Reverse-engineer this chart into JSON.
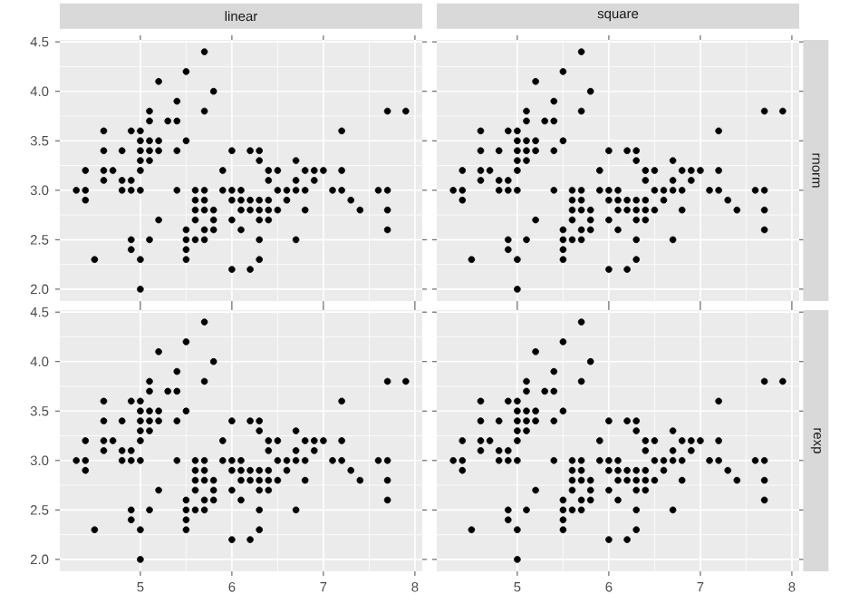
{
  "chart_data": [
    {
      "type": "scatter",
      "title": "linear",
      "marker": "circle",
      "color": "#000000",
      "grid": true,
      "tick_labels": "y",
      "x": [
        4.3,
        4.4,
        4.4,
        4.4,
        4.5,
        4.6,
        4.6,
        4.6,
        4.6,
        4.7,
        4.8,
        4.8,
        4.8,
        4.9,
        4.9,
        4.9,
        4.9,
        4.9,
        5.0,
        5.0,
        5.0,
        5.0,
        5.0,
        5.0,
        5.0,
        5.0,
        5.1,
        5.1,
        5.1,
        5.1,
        5.1,
        5.1,
        5.2,
        5.2,
        5.2,
        5.2,
        5.3,
        5.4,
        5.4,
        5.4,
        5.4,
        5.5,
        5.5,
        5.5,
        5.5,
        5.5,
        5.5,
        5.6,
        5.6,
        5.6,
        5.6,
        5.6,
        5.7,
        5.7,
        5.7,
        5.7,
        5.7,
        5.7,
        5.7,
        5.8,
        5.8,
        5.8,
        5.8,
        5.9,
        5.9,
        6.0,
        6.0,
        6.0,
        6.0,
        6.0,
        6.1,
        6.1,
        6.1,
        6.1,
        6.2,
        6.2,
        6.2,
        6.2,
        6.3,
        6.3,
        6.3,
        6.3,
        6.3,
        6.3,
        6.3,
        6.4,
        6.4,
        6.4,
        6.4,
        6.4,
        6.5,
        6.5,
        6.5,
        6.6,
        6.6,
        6.7,
        6.7,
        6.7,
        6.7,
        6.8,
        6.8,
        6.8,
        6.9,
        6.9,
        7.0,
        7.1,
        7.2,
        7.2,
        7.2,
        7.3,
        7.4,
        7.6,
        7.7,
        7.7,
        7.7,
        7.7,
        7.9
      ],
      "values": [
        3.0,
        2.9,
        3.0,
        3.2,
        2.3,
        3.1,
        3.4,
        3.6,
        3.2,
        3.2,
        3.4,
        3.0,
        3.1,
        3.0,
        3.1,
        3.6,
        2.4,
        2.5,
        3.6,
        3.4,
        3.0,
        3.2,
        3.5,
        3.3,
        2.0,
        2.3,
        3.5,
        3.8,
        3.7,
        3.3,
        3.4,
        2.5,
        3.5,
        3.4,
        4.1,
        2.7,
        3.7,
        3.9,
        3.7,
        3.4,
        3.0,
        4.2,
        3.5,
        2.3,
        2.4,
        2.5,
        2.6,
        2.9,
        3.0,
        2.5,
        2.7,
        2.8,
        4.4,
        3.8,
        2.8,
        2.6,
        3.0,
        2.9,
        2.5,
        4.0,
        2.7,
        2.6,
        2.8,
        3.0,
        3.2,
        2.2,
        2.9,
        2.7,
        3.4,
        3.0,
        2.9,
        2.8,
        3.0,
        2.6,
        2.2,
        2.9,
        2.8,
        3.4,
        3.3,
        2.5,
        2.3,
        2.9,
        2.7,
        2.8,
        3.4,
        3.2,
        2.9,
        2.7,
        2.8,
        3.1,
        2.8,
        3.0,
        3.2,
        2.9,
        3.0,
        3.1,
        3.0,
        2.5,
        3.3,
        2.8,
        3.0,
        3.2,
        3.1,
        3.2,
        3.2,
        3.0,
        3.6,
        3.2,
        3.0,
        2.9,
        2.8,
        3.0,
        3.8,
        2.6,
        2.8,
        3.0,
        3.8
      ],
      "xlim": [
        4.12,
        8.08
      ],
      "xticks": [
        5,
        6,
        7,
        8
      ],
      "ylim": [
        1.88,
        4.52
      ],
      "yticks": [
        {
          "value": 2,
          "label": "2.0"
        },
        {
          "value": 2.5,
          "label": "2.5"
        },
        {
          "value": 3,
          "label": "3.0"
        },
        {
          "value": 3.5,
          "label": "3.5"
        },
        {
          "value": 4,
          "label": "4.0"
        },
        {
          "value": 4.5,
          "label": "4.5"
        }
      ]
    },
    {
      "type": "scatter",
      "title": "square",
      "annotations": [
        "rnorm"
      ],
      "marker": "circle",
      "color": "#000000",
      "grid": true,
      "tick_labels": false,
      "yticks": [
        2,
        2.5,
        3,
        3.5,
        4,
        4.5
      ],
      "x": [
        4.3,
        4.4,
        4.4,
        4.4,
        4.5,
        4.6,
        4.6,
        4.6,
        4.6,
        4.7,
        4.8,
        4.8,
        4.8,
        4.9,
        4.9,
        4.9,
        4.9,
        4.9,
        5.0,
        5.0,
        5.0,
        5.0,
        5.0,
        5.0,
        5.0,
        5.0,
        5.1,
        5.1,
        5.1,
        5.1,
        5.1,
        5.1,
        5.2,
        5.2,
        5.2,
        5.2,
        5.3,
        5.4,
        5.4,
        5.4,
        5.4,
        5.5,
        5.5,
        5.5,
        5.5,
        5.5,
        5.5,
        5.6,
        5.6,
        5.6,
        5.6,
        5.6,
        5.7,
        5.7,
        5.7,
        5.7,
        5.7,
        5.7,
        5.7,
        5.8,
        5.8,
        5.8,
        5.8,
        5.9,
        5.9,
        6.0,
        6.0,
        6.0,
        6.0,
        6.0,
        6.1,
        6.1,
        6.1,
        6.1,
        6.2,
        6.2,
        6.2,
        6.2,
        6.3,
        6.3,
        6.3,
        6.3,
        6.3,
        6.3,
        6.3,
        6.4,
        6.4,
        6.4,
        6.4,
        6.4,
        6.5,
        6.5,
        6.5,
        6.6,
        6.6,
        6.7,
        6.7,
        6.7,
        6.7,
        6.8,
        6.8,
        6.8,
        6.9,
        6.9,
        7.0,
        7.1,
        7.2,
        7.2,
        7.2,
        7.3,
        7.4,
        7.6,
        7.7,
        7.7,
        7.7,
        7.7,
        7.9
      ],
      "values": [
        3.0,
        2.9,
        3.0,
        3.2,
        2.3,
        3.1,
        3.4,
        3.6,
        3.2,
        3.2,
        3.4,
        3.0,
        3.1,
        3.0,
        3.1,
        3.6,
        2.4,
        2.5,
        3.6,
        3.4,
        3.0,
        3.2,
        3.5,
        3.3,
        2.0,
        2.3,
        3.5,
        3.8,
        3.7,
        3.3,
        3.4,
        2.5,
        3.5,
        3.4,
        4.1,
        2.7,
        3.7,
        3.9,
        3.7,
        3.4,
        3.0,
        4.2,
        3.5,
        2.3,
        2.4,
        2.5,
        2.6,
        2.9,
        3.0,
        2.5,
        2.7,
        2.8,
        4.4,
        3.8,
        2.8,
        2.6,
        3.0,
        2.9,
        2.5,
        4.0,
        2.7,
        2.6,
        2.8,
        3.0,
        3.2,
        2.2,
        2.9,
        2.7,
        3.4,
        3.0,
        2.9,
        2.8,
        3.0,
        2.6,
        2.2,
        2.9,
        2.8,
        3.4,
        3.3,
        2.5,
        2.3,
        2.9,
        2.7,
        2.8,
        3.4,
        3.2,
        2.9,
        2.7,
        2.8,
        3.1,
        2.8,
        3.0,
        3.2,
        2.9,
        3.0,
        3.1,
        3.0,
        2.5,
        3.3,
        2.8,
        3.0,
        3.2,
        3.1,
        3.2,
        3.2,
        3.0,
        3.6,
        3.2,
        3.0,
        2.9,
        2.8,
        3.0,
        3.8,
        2.6,
        2.8,
        3.0,
        3.8
      ],
      "xlim": [
        4.12,
        8.08
      ],
      "xticks": [
        5,
        6,
        7,
        8
      ],
      "ylim": [
        1.88,
        4.52
      ]
    },
    {
      "type": "scatter",
      "marker": "circle",
      "color": "#000000",
      "grid": true,
      "x": [
        4.3,
        4.4,
        4.4,
        4.4,
        4.5,
        4.6,
        4.6,
        4.6,
        4.6,
        4.7,
        4.8,
        4.8,
        4.8,
        4.9,
        4.9,
        4.9,
        4.9,
        4.9,
        5.0,
        5.0,
        5.0,
        5.0,
        5.0,
        5.0,
        5.0,
        5.0,
        5.1,
        5.1,
        5.1,
        5.1,
        5.1,
        5.1,
        5.2,
        5.2,
        5.2,
        5.2,
        5.3,
        5.4,
        5.4,
        5.4,
        5.4,
        5.5,
        5.5,
        5.5,
        5.5,
        5.5,
        5.5,
        5.6,
        5.6,
        5.6,
        5.6,
        5.6,
        5.7,
        5.7,
        5.7,
        5.7,
        5.7,
        5.7,
        5.7,
        5.8,
        5.8,
        5.8,
        5.8,
        5.9,
        5.9,
        6.0,
        6.0,
        6.0,
        6.0,
        6.0,
        6.1,
        6.1,
        6.1,
        6.1,
        6.2,
        6.2,
        6.2,
        6.2,
        6.3,
        6.3,
        6.3,
        6.3,
        6.3,
        6.3,
        6.3,
        6.4,
        6.4,
        6.4,
        6.4,
        6.4,
        6.5,
        6.5,
        6.5,
        6.6,
        6.6,
        6.7,
        6.7,
        6.7,
        6.7,
        6.8,
        6.8,
        6.8,
        6.9,
        6.9,
        7.0,
        7.1,
        7.2,
        7.2,
        7.2,
        7.3,
        7.4,
        7.6,
        7.7,
        7.7,
        7.7,
        7.7,
        7.9
      ],
      "values": [
        3.0,
        2.9,
        3.0,
        3.2,
        2.3,
        3.1,
        3.4,
        3.6,
        3.2,
        3.2,
        3.4,
        3.0,
        3.1,
        3.0,
        3.1,
        3.6,
        2.4,
        2.5,
        3.6,
        3.4,
        3.0,
        3.2,
        3.5,
        3.3,
        2.0,
        2.3,
        3.5,
        3.8,
        3.7,
        3.3,
        3.4,
        2.5,
        3.5,
        3.4,
        4.1,
        2.7,
        3.7,
        3.9,
        3.7,
        3.4,
        3.0,
        4.2,
        3.5,
        2.3,
        2.4,
        2.5,
        2.6,
        2.9,
        3.0,
        2.5,
        2.7,
        2.8,
        4.4,
        3.8,
        2.8,
        2.6,
        3.0,
        2.9,
        2.5,
        4.0,
        2.7,
        2.6,
        2.8,
        3.0,
        3.2,
        2.2,
        2.9,
        2.7,
        3.4,
        3.0,
        2.9,
        2.8,
        3.0,
        2.6,
        2.2,
        2.9,
        2.8,
        3.4,
        3.3,
        2.5,
        2.3,
        2.9,
        2.7,
        2.8,
        3.4,
        3.2,
        2.9,
        2.7,
        2.8,
        3.1,
        2.8,
        3.0,
        3.2,
        2.9,
        3.0,
        3.1,
        3.0,
        2.5,
        3.3,
        2.8,
        3.0,
        3.2,
        3.1,
        3.2,
        3.2,
        3.0,
        3.6,
        3.2,
        3.0,
        2.9,
        2.8,
        3.0,
        3.8,
        2.6,
        2.8,
        3.0,
        3.8
      ],
      "xlim": [
        4.12,
        8.08
      ],
      "xticks": [
        5,
        6,
        7,
        8
      ],
      "ylim": [
        1.88,
        4.52
      ],
      "yticks": [
        {
          "value": 2,
          "label": "2.0"
        },
        {
          "value": 2.5,
          "label": "2.5"
        },
        {
          "value": 3,
          "label": "3.0"
        },
        {
          "value": 3.5,
          "label": "3.5"
        },
        {
          "value": 4,
          "label": "4.0"
        },
        {
          "value": 4.5,
          "label": "4.5"
        }
      ]
    },
    {
      "type": "scatter",
      "annotations": [
        "rexp"
      ],
      "marker": "circle",
      "color": "#000000",
      "grid": true,
      "tick_labels": "x",
      "yticks": [
        2,
        2.5,
        3,
        3.5,
        4,
        4.5
      ],
      "x": [
        4.3,
        4.4,
        4.4,
        4.4,
        4.5,
        4.6,
        4.6,
        4.6,
        4.6,
        4.7,
        4.8,
        4.8,
        4.8,
        4.9,
        4.9,
        4.9,
        4.9,
        4.9,
        5.0,
        5.0,
        5.0,
        5.0,
        5.0,
        5.0,
        5.0,
        5.0,
        5.1,
        5.1,
        5.1,
        5.1,
        5.1,
        5.1,
        5.2,
        5.2,
        5.2,
        5.2,
        5.3,
        5.4,
        5.4,
        5.4,
        5.4,
        5.5,
        5.5,
        5.5,
        5.5,
        5.5,
        5.5,
        5.6,
        5.6,
        5.6,
        5.6,
        5.6,
        5.7,
        5.7,
        5.7,
        5.7,
        5.7,
        5.7,
        5.7,
        5.8,
        5.8,
        5.8,
        5.8,
        5.9,
        5.9,
        6.0,
        6.0,
        6.0,
        6.0,
        6.0,
        6.1,
        6.1,
        6.1,
        6.1,
        6.2,
        6.2,
        6.2,
        6.2,
        6.3,
        6.3,
        6.3,
        6.3,
        6.3,
        6.3,
        6.3,
        6.4,
        6.4,
        6.4,
        6.4,
        6.4,
        6.5,
        6.5,
        6.5,
        6.6,
        6.6,
        6.7,
        6.7,
        6.7,
        6.7,
        6.8,
        6.8,
        6.8,
        6.9,
        6.9,
        7.0,
        7.1,
        7.2,
        7.2,
        7.2,
        7.3,
        7.4,
        7.6,
        7.7,
        7.7,
        7.7,
        7.7,
        7.9
      ],
      "values": [
        3.0,
        2.9,
        3.0,
        3.2,
        2.3,
        3.1,
        3.4,
        3.6,
        3.2,
        3.2,
        3.4,
        3.0,
        3.1,
        3.0,
        3.1,
        3.6,
        2.4,
        2.5,
        3.6,
        3.4,
        3.0,
        3.2,
        3.5,
        3.3,
        2.0,
        2.3,
        3.5,
        3.8,
        3.7,
        3.3,
        3.4,
        2.5,
        3.5,
        3.4,
        4.1,
        2.7,
        3.7,
        3.9,
        3.7,
        3.4,
        3.0,
        4.2,
        3.5,
        2.3,
        2.4,
        2.5,
        2.6,
        2.9,
        3.0,
        2.5,
        2.7,
        2.8,
        4.4,
        3.8,
        2.8,
        2.6,
        3.0,
        2.9,
        2.5,
        4.0,
        2.7,
        2.6,
        2.8,
        3.0,
        3.2,
        2.2,
        2.9,
        2.7,
        3.4,
        3.0,
        2.9,
        2.8,
        3.0,
        2.6,
        2.2,
        2.9,
        2.8,
        3.4,
        3.3,
        2.5,
        2.3,
        2.9,
        2.7,
        2.8,
        3.4,
        3.2,
        2.9,
        2.7,
        2.8,
        3.1,
        2.8,
        3.0,
        3.2,
        2.9,
        3.0,
        3.1,
        3.0,
        2.5,
        3.3,
        2.8,
        3.0,
        3.2,
        3.1,
        3.2,
        3.2,
        3.0,
        3.6,
        3.2,
        3.0,
        2.9,
        2.8,
        3.0,
        3.8,
        2.6,
        2.8,
        3.0,
        3.8
      ],
      "xlim": [
        4.12,
        8.08
      ],
      "xticks": [
        5,
        6,
        7,
        8
      ],
      "ylim": [
        1.88,
        4.52
      ]
    }
  ]
}
